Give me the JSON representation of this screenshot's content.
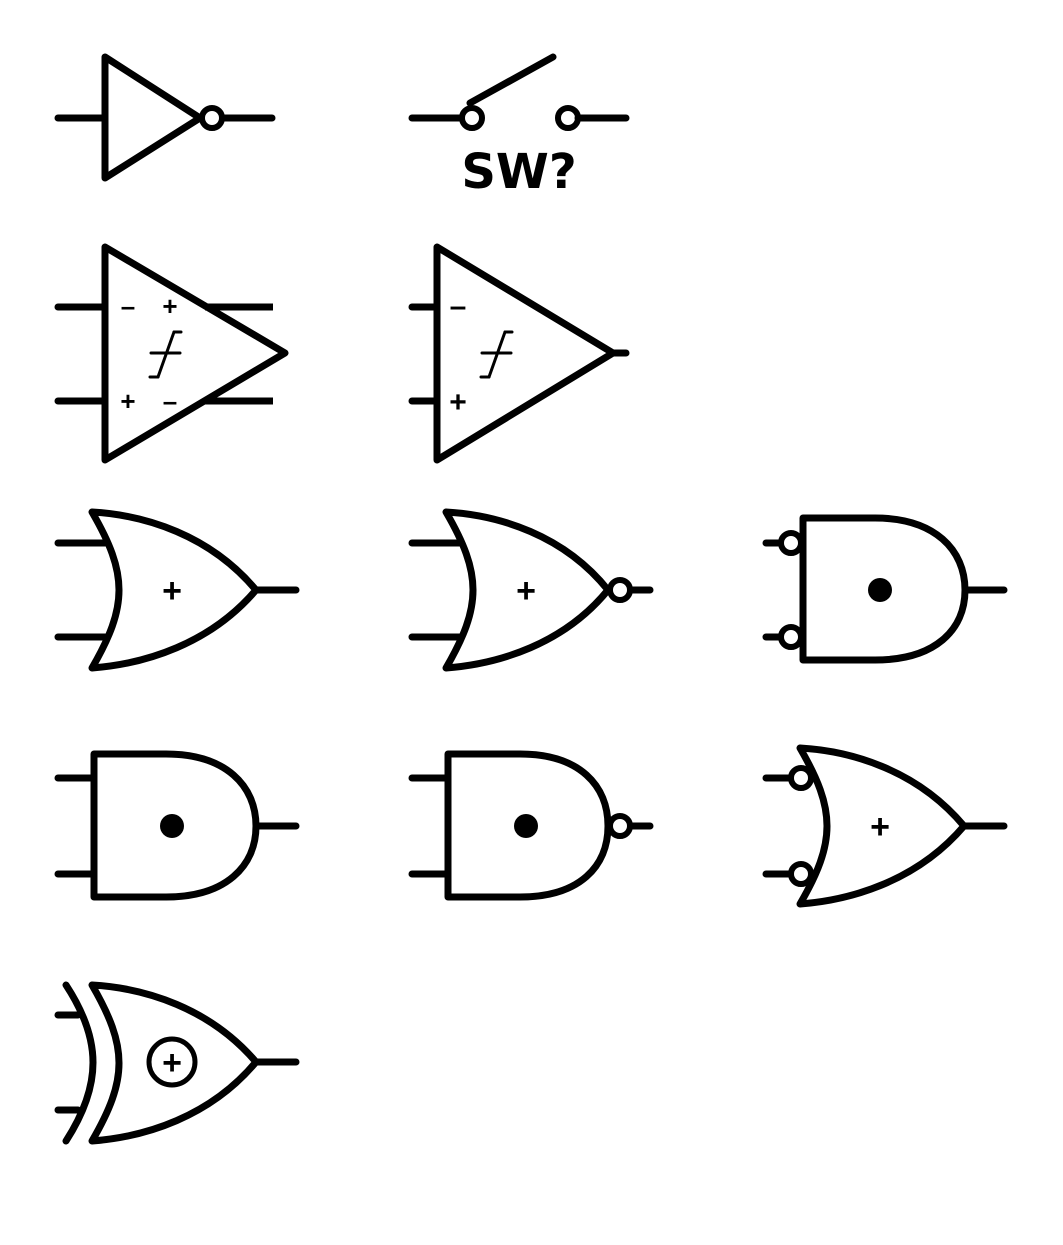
{
  "switch": {
    "designator": "SW?"
  },
  "opamp_differential": {
    "minus_top": "–",
    "plus_top": "+",
    "plus_bottom": "+",
    "minus_bottom": "–"
  },
  "opamp": {
    "minus": "–",
    "plus": "+"
  },
  "or_gate": {
    "operator": "+"
  },
  "nor_gate": {
    "operator": "+"
  },
  "and_inverted_inputs": {
    "operator": "•"
  },
  "and_gate": {
    "operator": "•"
  },
  "nand_gate": {
    "operator": "•"
  },
  "or_inverted_inputs": {
    "operator": "+"
  },
  "xor_gate": {
    "operator": "+"
  }
}
